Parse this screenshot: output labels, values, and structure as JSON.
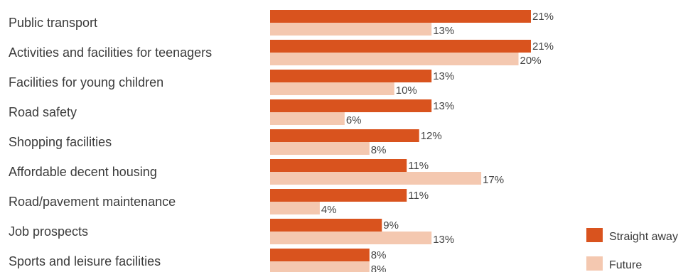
{
  "chart_data": {
    "type": "bar",
    "orientation": "horizontal",
    "categories": [
      "Public transport",
      "Activities and facilities for teenagers",
      "Facilities for young children",
      "Road safety",
      "Shopping facilities",
      "Affordable decent housing",
      "Road/pavement maintenance",
      "Job prospects",
      "Sports and leisure facilities"
    ],
    "series": [
      {
        "name": "Straight away",
        "color": "#d9531e",
        "values": [
          21,
          21,
          13,
          13,
          12,
          11,
          11,
          9,
          8
        ]
      },
      {
        "name": "Future",
        "color": "#f4c8b0",
        "values": [
          13,
          20,
          10,
          6,
          8,
          17,
          4,
          13,
          8
        ]
      }
    ],
    "value_suffix": "%",
    "xlim": [
      0,
      21
    ],
    "grid": false,
    "legend_position": "bottom-right"
  }
}
